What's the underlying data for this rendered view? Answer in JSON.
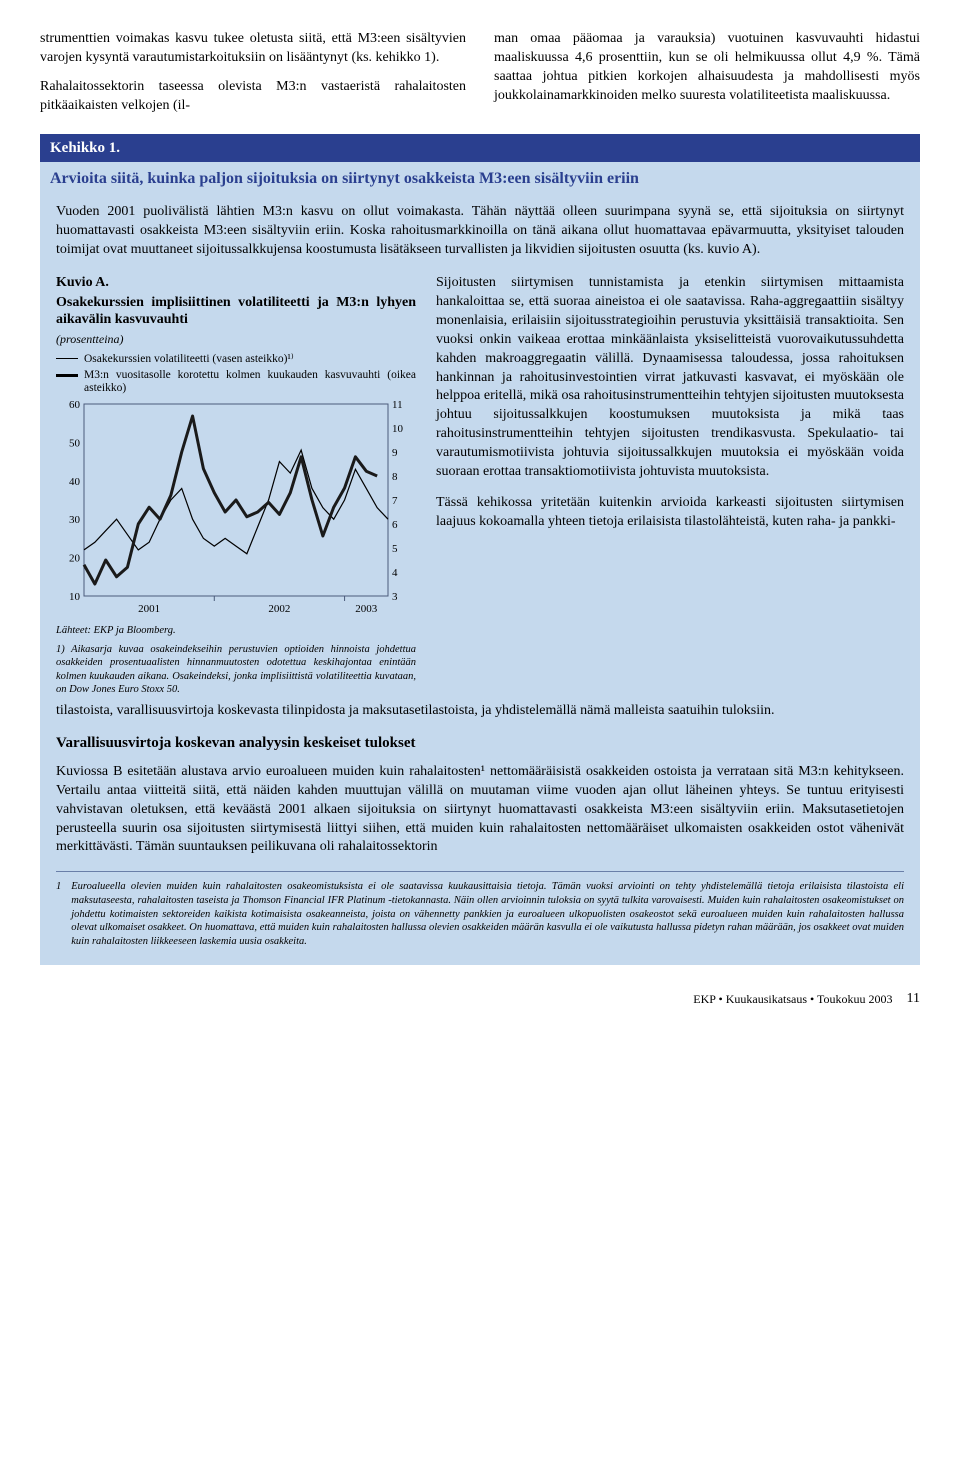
{
  "top": {
    "left": "strumenttien voimakas kasvu tukee oletusta siitä, että M3:een sisältyvien varojen kysyntä varautumistarkoituksiin on lisääntynyt (ks. kehikko 1).",
    "left2": "Rahalaitossektorin taseessa olevista M3:n vastaeristä rahalaitosten pitkäaikaisten velkojen (il-",
    "right": "man omaa pääomaa ja varauksia) vuotuinen kasvuvauhti hidastui maaliskuussa 4,6 prosenttiin, kun se oli helmikuussa ollut 4,9 %. Tämä saattaa johtua pitkien korkojen alhaisuudesta ja mahdollisesti myös joukkolainamarkkinoiden melko suuresta volatiliteetista maaliskuussa."
  },
  "box": {
    "header": "Kehikko 1.",
    "subtitle": "Arvioita siitä, kuinka paljon sijoituksia on siirtynyt osakkeista M3:een sisältyviin eriin",
    "p1": "Vuoden 2001 puolivälistä lähtien M3:n kasvu on ollut voimakasta. Tähän näyttää olleen suurimpana syynä se, että sijoituksia on siirtynyt huomattavasti osakkeista M3:een sisältyviin eriin. Koska rahoitusmarkkinoilla on tänä aikana ollut huomattavaa epävarmuutta, yksityiset talouden toimijat ovat muuttaneet sijoitussalkkujensa koostumusta lisätäkseen turvallisten ja likvidien sijoitusten osuutta (ks. kuvio A).",
    "right1": "Sijoitusten siirtymisen tunnistamista ja etenkin siirtymisen mittaamista hankaloittaa se, että suoraa aineistoa ei ole saatavissa. Raha-aggregaattiin sisältyy monenlaisia, erilaisiin sijoitusstrategioihin perustuvia yksittäisiä transaktioita. Sen vuoksi onkin vaikeaa erottaa minkäänlaista yksiselitteistä vuorovaikutussuhdetta kahden makroaggregaatin välillä. Dynaamisessa taloudessa, jossa rahoituksen hankinnan ja rahoitusinvestointien virrat jatkuvasti kasvavat, ei myöskään ole helppoa eritellä, mikä osa rahoitusinstrumentteihin tehtyjen sijoitusten muutoksesta johtuu sijoitussalkkujen koostumuksen muutoksista ja mikä taas rahoitusinstrumentteihin tehtyjen sijoitusten trendikasvusta. Spekulaatio- tai varautumismotiivista johtuvia sijoitussalkkujen muutoksia ei myöskään voida suoraan erottaa transaktiomotiivista johtuvista muutoksista.",
    "right2": "Tässä kehikossa yritetään kuitenkin arvioida karkeasti sijoitusten siirtymisen laajuus kokoamalla yhteen tietoja erilaisista tilastolähteistä, kuten raha- ja pankki-",
    "p2tail": "tilastoista, varallisuusvirtoja koskevasta tilinpidosta ja maksutasetilastoista, ja yhdistelemällä nämä malleista saatuihin tuloksiin.",
    "section2": "Varallisuusvirtoja koskevan analyysin keskeiset tulokset",
    "p3": "Kuviossa B esitetään alustava arvio euroalueen muiden kuin rahalaitosten¹ nettomääräisistä osakkeiden ostoista ja verrataan sitä M3:n kehitykseen. Vertailu antaa viitteitä siitä, että näiden kahden muuttujan välillä on muutaman viime vuoden ajan ollut läheinen yhteys. Se tuntuu erityisesti vahvistavan oletuksen, että keväästä 2001 alkaen sijoituksia on siirtynyt huomattavasti osakkeista M3:een sisältyviin eriin. Maksutasetietojen perusteella suurin osa sijoitusten siirtymisestä liittyi siihen, että muiden kuin rahalaitosten nettomääräiset ulkomaisten osakkeiden ostot vähenivät merkittävästi. Tämän suuntauksen peilikuvana oli rahalaitossektorin",
    "footnote_num": "1",
    "footnote": "Euroalueella olevien muiden kuin rahalaitosten osakeomistuksista ei ole saatavissa kuukausittaisia tietoja. Tämän vuoksi arviointi on tehty yhdistelemällä tietoja erilaisista tilastoista eli maksutaseesta, rahalaitosten taseista ja Thomson Financial IFR Platinum -tietokannasta. Näin ollen arvioinnin tuloksia on syytä tulkita varovaisesti. Muiden kuin rahalaitosten osakeomistukset on johdettu kotimaisten sektoreiden kaikista kotimaisista osakeanneista, joista on vähennetty pankkien ja euroalueen ulkopuolisten osakeostot sekä euroalueen muiden kuin rahalaitosten hallussa olevat ulkomaiset osakkeet. On huomattava, että muiden kuin rahalaitosten hallussa olevien osakkeiden määrän kasvulla ei ole vaikutusta hallussa pidetyn rahan määrään, jos osakkeet ovat muiden kuin rahalaitosten liikkeeseen laskemia uusia osakkeita."
  },
  "chart": {
    "title1": "Kuvio A.",
    "title2": "Osakekurssien implisiittinen volatiliteetti ja M3:n lyhyen aikavälin kasvuvauhti",
    "unit": "(prosentteina)",
    "legend1": "Osakekurssien volatiliteetti (vasen asteikko)¹⁾",
    "legend2": "M3:n vuositasolle korotettu kolmen kuukauden kasvuvauhti (oikea asteikko)",
    "colors": {
      "thin": "#000000",
      "thick": "#1a1a1a",
      "grid": "#4a5a7a",
      "bg": "#c5d9ed"
    },
    "left_ticks": [
      60,
      50,
      40,
      30,
      20,
      10
    ],
    "right_ticks": [
      11,
      10,
      9,
      8,
      7,
      6,
      5,
      4,
      3
    ],
    "x_labels": [
      "2001",
      "2002",
      "2003"
    ],
    "xlim": [
      0,
      28
    ],
    "left_ylim": [
      10,
      60
    ],
    "right_ylim": [
      3,
      11
    ],
    "thin_series": [
      [
        0,
        22
      ],
      [
        1,
        24
      ],
      [
        2,
        27
      ],
      [
        3,
        30
      ],
      [
        4,
        26
      ],
      [
        5,
        22
      ],
      [
        6,
        24
      ],
      [
        7,
        30
      ],
      [
        8,
        35
      ],
      [
        9,
        38
      ],
      [
        10,
        30
      ],
      [
        11,
        25
      ],
      [
        12,
        23
      ],
      [
        13,
        25
      ],
      [
        14,
        23
      ],
      [
        15,
        21
      ],
      [
        16,
        28
      ],
      [
        17,
        35
      ],
      [
        18,
        45
      ],
      [
        19,
        42
      ],
      [
        20,
        48
      ],
      [
        21,
        38
      ],
      [
        22,
        33
      ],
      [
        23,
        30
      ],
      [
        24,
        35
      ],
      [
        25,
        43
      ],
      [
        26,
        38
      ],
      [
        27,
        33
      ],
      [
        28,
        30
      ]
    ],
    "thick_series": [
      [
        0,
        4.3
      ],
      [
        1,
        3.5
      ],
      [
        2,
        4.5
      ],
      [
        3,
        3.8
      ],
      [
        4,
        4.2
      ],
      [
        5,
        6.0
      ],
      [
        6,
        6.7
      ],
      [
        7,
        6.2
      ],
      [
        8,
        7.2
      ],
      [
        9,
        9.0
      ],
      [
        10,
        10.5
      ],
      [
        11,
        8.3
      ],
      [
        12,
        7.3
      ],
      [
        13,
        6.5
      ],
      [
        14,
        7.0
      ],
      [
        15,
        6.3
      ],
      [
        16,
        6.5
      ],
      [
        17,
        6.9
      ],
      [
        18,
        6.4
      ],
      [
        19,
        7.3
      ],
      [
        20,
        8.8
      ],
      [
        21,
        7.0
      ],
      [
        22,
        5.5
      ],
      [
        23,
        6.7
      ],
      [
        24,
        7.5
      ],
      [
        25,
        8.8
      ],
      [
        26,
        8.2
      ],
      [
        27,
        8.0
      ]
    ],
    "source": "Lähteet: EKP ja Bloomberg.",
    "note": "1)  Aikasarja kuvaa osakeindekseihin perustuvien optioiden hinnoista johdettua osakkeiden prosentuaalisten hinnanmuutosten odotettua keskihajontaa enintään kolmen kuukauden aikana. Osakeindeksi, jonka implisiittistä volatiliteettia kuvataan, on Dow Jones Euro Stoxx 50."
  },
  "footer": {
    "left": "EKP • Kuukausikatsaus • Toukokuu 2003",
    "page": "11"
  }
}
